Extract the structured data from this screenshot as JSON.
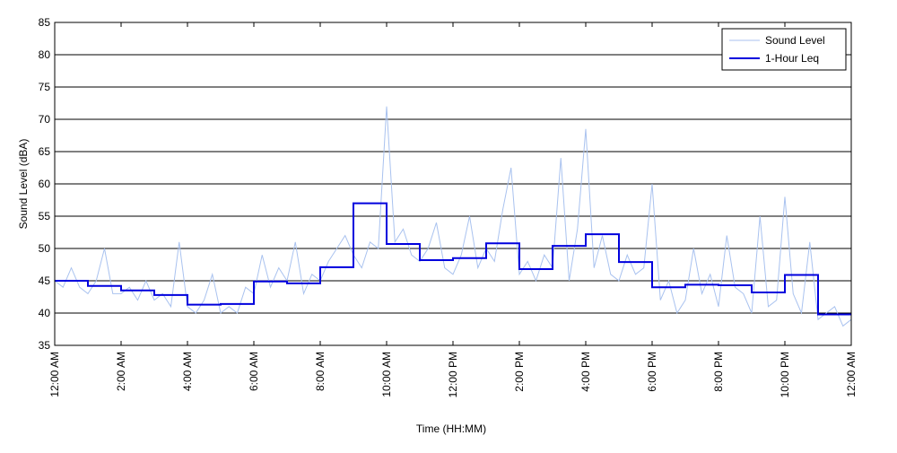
{
  "chart_data": {
    "type": "line",
    "x_label": "Time (HH:MM)",
    "y_label": "Sound Level (dBA)",
    "xlim": [
      0,
      24
    ],
    "ylim": [
      35,
      85
    ],
    "yticks": [
      35,
      40,
      45,
      50,
      55,
      60,
      65,
      70,
      75,
      80,
      85
    ],
    "xticks": [
      {
        "value": 0,
        "label": "12:00 AM"
      },
      {
        "value": 2,
        "label": "2:00 AM"
      },
      {
        "value": 4,
        "label": "4:00 AM"
      },
      {
        "value": 6,
        "label": "6:00 AM"
      },
      {
        "value": 8,
        "label": "8:00 AM"
      },
      {
        "value": 10,
        "label": "10:00 AM"
      },
      {
        "value": 12,
        "label": "12:00 PM"
      },
      {
        "value": 14,
        "label": "2:00 PM"
      },
      {
        "value": 16,
        "label": "4:00 PM"
      },
      {
        "value": 18,
        "label": "6:00 PM"
      },
      {
        "value": 20,
        "label": "8:00 PM"
      },
      {
        "value": 22,
        "label": "10:00 PM"
      },
      {
        "value": 24,
        "label": "12:00 AM"
      }
    ],
    "grid": true,
    "legend": "upper right",
    "series": [
      {
        "name": "Sound Level",
        "color": "#a9c2ef",
        "step": false,
        "x": [
          0,
          0.25,
          0.5,
          0.75,
          1,
          1.25,
          1.5,
          1.75,
          2,
          2.25,
          2.5,
          2.75,
          3,
          3.25,
          3.5,
          3.75,
          4,
          4.25,
          4.5,
          4.75,
          5,
          5.25,
          5.5,
          5.75,
          6,
          6.25,
          6.5,
          6.75,
          7,
          7.25,
          7.5,
          7.75,
          8,
          8.25,
          8.5,
          8.75,
          9,
          9.25,
          9.5,
          9.75,
          10,
          10.25,
          10.5,
          10.75,
          11,
          11.25,
          11.5,
          11.75,
          12,
          12.25,
          12.5,
          12.75,
          13,
          13.25,
          13.5,
          13.75,
          14,
          14.25,
          14.5,
          14.75,
          15,
          15.25,
          15.5,
          15.75,
          16,
          16.25,
          16.5,
          16.75,
          17,
          17.25,
          17.5,
          17.75,
          18,
          18.25,
          18.5,
          18.75,
          19,
          19.25,
          19.5,
          19.75,
          20,
          20.25,
          20.5,
          20.75,
          21,
          21.25,
          21.5,
          21.75,
          22,
          22.25,
          22.5,
          22.75,
          23,
          23.25,
          23.5,
          23.75,
          24
        ],
        "values": [
          45,
          44,
          47,
          44,
          43,
          45,
          50,
          43,
          43,
          44,
          42,
          45,
          42,
          43,
          41,
          51,
          41,
          40,
          42,
          46,
          40,
          41,
          40,
          44,
          43,
          49,
          44,
          47,
          45,
          51,
          43,
          46,
          45,
          48,
          50,
          52,
          49,
          47,
          51,
          50,
          72,
          51,
          53,
          49,
          48,
          50,
          54,
          47,
          46,
          49,
          55,
          47,
          50,
          48,
          56,
          62.5,
          46,
          48,
          45,
          49,
          47,
          64,
          45,
          53,
          68.5,
          47,
          52,
          46,
          45,
          49,
          46,
          47,
          60,
          42,
          45,
          40,
          42,
          50,
          43,
          46,
          41,
          52,
          44,
          43,
          40,
          55,
          41,
          42,
          58,
          43,
          40,
          51,
          39,
          40,
          41,
          38,
          39
        ]
      },
      {
        "name": "1-Hour Leq",
        "color": "#0000dd",
        "step": true,
        "x": [
          0,
          1,
          2,
          3,
          4,
          5,
          6,
          7,
          8,
          9,
          10,
          11,
          12,
          13,
          14,
          15,
          16,
          17,
          18,
          19,
          20,
          21,
          22,
          23
        ],
        "values": [
          45.0,
          44.2,
          43.5,
          42.8,
          41.3,
          41.4,
          44.9,
          44.6,
          47.1,
          57.0,
          50.7,
          48.2,
          48.5,
          50.8,
          46.8,
          50.4,
          52.2,
          47.9,
          44.0,
          44.4,
          44.3,
          43.2,
          45.9,
          39.8
        ]
      }
    ]
  }
}
